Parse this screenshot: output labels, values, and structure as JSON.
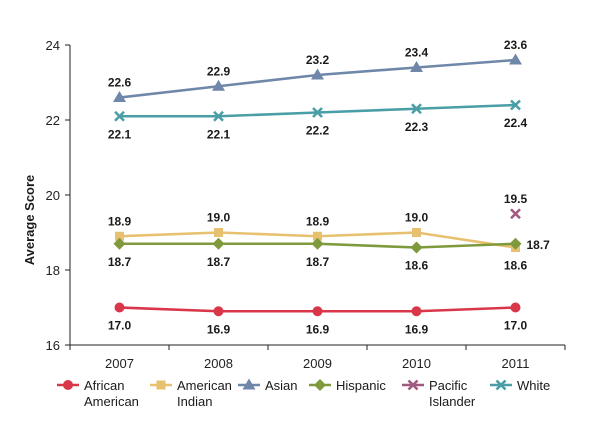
{
  "chart_data": {
    "type": "line",
    "categories": [
      "2007",
      "2008",
      "2009",
      "2010",
      "2011"
    ],
    "title": "",
    "xlabel": "",
    "ylabel": "Average Score",
    "ylim": [
      16,
      24
    ],
    "yticks": [
      16,
      18,
      20,
      22,
      24
    ],
    "grid": false,
    "legend_position": "bottom",
    "series": [
      {
        "name": "African American",
        "legend_lines": [
          "African",
          "American"
        ],
        "color": "#d9364a",
        "marker": "circle",
        "values": [
          17.0,
          16.9,
          16.9,
          16.9,
          17.0
        ],
        "labels": [
          "17.0",
          "16.9",
          "16.9",
          "16.9",
          "17.0"
        ]
      },
      {
        "name": "American Indian",
        "legend_lines": [
          "American",
          "Indian"
        ],
        "color": "#e8c170",
        "marker": "square",
        "values": [
          18.9,
          19.0,
          18.9,
          19.0,
          18.6
        ],
        "labels": [
          "18.9",
          "19.0",
          "18.9",
          "19.0",
          "18.6"
        ]
      },
      {
        "name": "Asian",
        "legend_lines": [
          "Asian"
        ],
        "color": "#6f87a8",
        "marker": "triangle",
        "values": [
          22.6,
          22.9,
          23.2,
          23.4,
          23.6
        ],
        "labels": [
          "22.6",
          "22.9",
          "23.2",
          "23.4",
          "23.6"
        ]
      },
      {
        "name": "Hispanic",
        "legend_lines": [
          "Hispanic"
        ],
        "color": "#7f9a3c",
        "marker": "diamond",
        "values": [
          18.7,
          18.7,
          18.7,
          18.6,
          18.7
        ],
        "labels": [
          "18.7",
          "18.7",
          "18.7",
          "18.6",
          "18.7"
        ]
      },
      {
        "name": "Pacific Islander",
        "legend_lines": [
          "Pacific",
          "Islander"
        ],
        "color": "#a05a80",
        "marker": "x",
        "values": [
          null,
          null,
          null,
          null,
          19.5
        ],
        "labels": [
          null,
          null,
          null,
          null,
          "19.5"
        ]
      },
      {
        "name": "White",
        "legend_lines": [
          "White"
        ],
        "color": "#4a9ea6",
        "marker": "x",
        "values": [
          22.1,
          22.1,
          22.2,
          22.3,
          22.4
        ],
        "labels": [
          "22.1",
          "22.1",
          "22.2",
          "22.3",
          "22.4"
        ]
      }
    ]
  }
}
